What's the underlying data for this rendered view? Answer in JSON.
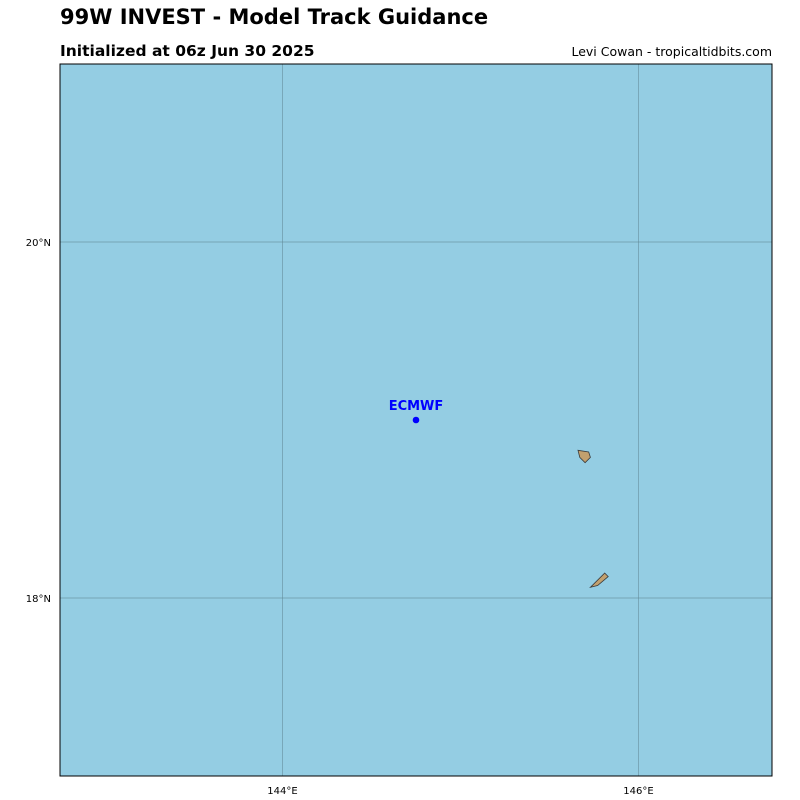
{
  "header": {
    "title": "99W INVEST - Model Track Guidance",
    "subtitle": "Initialized at 06z Jun 30 2025",
    "credit": "Levi Cowan - tropicaltidbits.com"
  },
  "map": {
    "projection": "plate-carree",
    "lon_range": [
      142.75,
      146.75
    ],
    "lat_range": [
      17.0,
      21.0
    ],
    "ocean_color": "#94cde3",
    "land_color": "#c2a06e",
    "grid_color": "#5f8593",
    "meridians": [
      {
        "lon": 144,
        "label": "144°E"
      },
      {
        "lon": 146,
        "label": "146°E"
      }
    ],
    "parallels": [
      {
        "lat": 20,
        "label": "20°N"
      },
      {
        "lat": 18,
        "label": "18°N"
      }
    ],
    "islands": [
      {
        "name": "Anatahan",
        "coords": [
          [
            145.66,
            18.83
          ],
          [
            145.72,
            18.82
          ],
          [
            145.73,
            18.79
          ],
          [
            145.7,
            18.76
          ],
          [
            145.67,
            18.79
          ]
        ]
      },
      {
        "name": "Sarigan",
        "coords": [
          [
            145.73,
            18.06
          ],
          [
            145.81,
            18.14
          ],
          [
            145.83,
            18.12
          ],
          [
            145.77,
            18.07
          ]
        ]
      }
    ]
  },
  "models": [
    {
      "name": "ECMWF",
      "color": "#0000ff",
      "positions": [
        [
          144.75,
          19.0
        ]
      ]
    }
  ]
}
